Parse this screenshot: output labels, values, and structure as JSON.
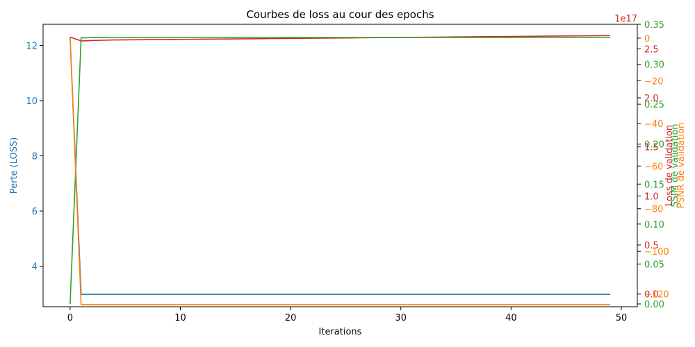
{
  "chart_data": {
    "type": "line",
    "title": "Courbes de loss au cour des epochs",
    "xlabel": "Iterations",
    "xlim": [
      -2.45,
      51.45
    ],
    "xticks": [
      0,
      10,
      20,
      30,
      40,
      50
    ],
    "grid": false,
    "legend": "none",
    "axes": [
      {
        "id": "left",
        "side": "left",
        "label": "Perte (LOSS)",
        "color": "#1f77b4",
        "lim": [
          2.53,
          12.77
        ],
        "ticks": [
          4,
          6,
          8,
          10,
          12
        ],
        "tick_labels": [
          "4",
          "6",
          "8",
          "10",
          "12"
        ]
      },
      {
        "id": "right1",
        "side": "right",
        "label": "Loss de validation",
        "color": "#d62728",
        "lim": [
          -0.13,
          2.75
        ],
        "ticks": [
          0.0,
          0.5,
          1.0,
          1.5,
          2.0,
          2.5
        ],
        "tick_labels": [
          "0.0",
          "0.5",
          "1.0",
          "1.5",
          "2.0",
          "2.5"
        ],
        "offset_text": "1e17"
      },
      {
        "id": "right2",
        "side": "right",
        "label": "SSIM de validation",
        "color": "#2ca02c",
        "lim": [
          -0.0035,
          0.35
        ],
        "ticks": [
          0.0,
          0.05,
          0.1,
          0.15,
          0.2,
          0.25,
          0.3,
          0.35
        ],
        "tick_labels": [
          "0.00",
          "0.05",
          "0.10",
          "0.15",
          "0.20",
          "0.25",
          "0.30",
          "0.35"
        ]
      },
      {
        "id": "right3",
        "side": "right",
        "label": "PSNR de validation",
        "color": "#ff7f0e",
        "lim": [
          -126,
          6.5
        ],
        "ticks": [
          0,
          -20,
          -40,
          -60,
          -80,
          -100,
          -120
        ],
        "tick_labels": [
          "0",
          "−20",
          "−40",
          "−60",
          "−80",
          "−100",
          "−120"
        ]
      }
    ],
    "x": [
      0,
      1,
      2,
      3,
      4,
      5,
      6,
      7,
      8,
      9,
      10,
      11,
      12,
      13,
      14,
      15,
      16,
      17,
      18,
      19,
      20,
      21,
      22,
      23,
      24,
      25,
      26,
      27,
      28,
      29,
      30,
      31,
      32,
      33,
      34,
      35,
      36,
      37,
      38,
      39,
      40,
      41,
      42,
      43,
      44,
      45,
      46,
      47,
      48,
      49
    ],
    "series": [
      {
        "axis": "left",
        "color": "#1f77b4",
        "values": [
          12.3,
          2.98,
          2.98,
          2.98,
          2.98,
          2.98,
          2.98,
          2.98,
          2.98,
          2.98,
          2.98,
          2.98,
          2.98,
          2.98,
          2.98,
          2.98,
          2.98,
          2.98,
          2.98,
          2.98,
          2.98,
          2.98,
          2.98,
          2.98,
          2.98,
          2.98,
          2.98,
          2.98,
          2.98,
          2.98,
          2.98,
          2.98,
          2.98,
          2.98,
          2.98,
          2.98,
          2.98,
          2.98,
          2.98,
          2.98,
          2.98,
          2.98,
          2.98,
          2.98,
          2.98,
          2.98,
          2.98,
          2.98,
          2.98,
          2.98
        ]
      },
      {
        "axis": "right1",
        "color": "#d62728",
        "values": [
          2.62,
          2.58,
          2.585,
          2.588,
          2.59,
          2.591,
          2.592,
          2.593,
          2.594,
          2.595,
          2.596,
          2.597,
          2.598,
          2.599,
          2.6,
          2.601,
          2.602,
          2.603,
          2.604,
          2.605,
          2.606,
          2.607,
          2.608,
          2.609,
          2.61,
          2.611,
          2.612,
          2.613,
          2.614,
          2.615,
          2.616,
          2.617,
          2.618,
          2.619,
          2.62,
          2.621,
          2.622,
          2.623,
          2.624,
          2.625,
          2.626,
          2.627,
          2.628,
          2.629,
          2.63,
          2.631,
          2.632,
          2.633,
          2.634,
          2.635
        ]
      },
      {
        "axis": "right2",
        "color": "#2ca02c",
        "values": [
          0.0,
          0.333,
          0.3333,
          0.3334,
          0.3335,
          0.3335,
          0.3335,
          0.3335,
          0.3335,
          0.3335,
          0.3335,
          0.3335,
          0.3335,
          0.3335,
          0.3335,
          0.3335,
          0.3335,
          0.3335,
          0.3335,
          0.3335,
          0.3335,
          0.3335,
          0.3335,
          0.3335,
          0.3335,
          0.3335,
          0.3335,
          0.3335,
          0.3335,
          0.3335,
          0.3335,
          0.3335,
          0.3335,
          0.3335,
          0.3335,
          0.3335,
          0.3335,
          0.3335,
          0.3335,
          0.3335,
          0.3335,
          0.3335,
          0.3335,
          0.3335,
          0.3335,
          0.3335,
          0.3335,
          0.3335,
          0.3335,
          0.3335
        ]
      },
      {
        "axis": "right3",
        "color": "#ff7f0e",
        "values": [
          0.5,
          -125,
          -125,
          -125,
          -125,
          -125,
          -125,
          -125,
          -125,
          -125,
          -125,
          -125,
          -125,
          -125,
          -125,
          -125,
          -125,
          -125,
          -125,
          -125,
          -125,
          -125,
          -125,
          -125,
          -125,
          -125,
          -125,
          -125,
          -125,
          -125,
          -125,
          -125,
          -125,
          -125,
          -125,
          -125,
          -125,
          -125,
          -125,
          -125,
          -125,
          -125,
          -125,
          -125,
          -125,
          -125,
          -125,
          -125,
          -125,
          -125
        ]
      }
    ]
  }
}
